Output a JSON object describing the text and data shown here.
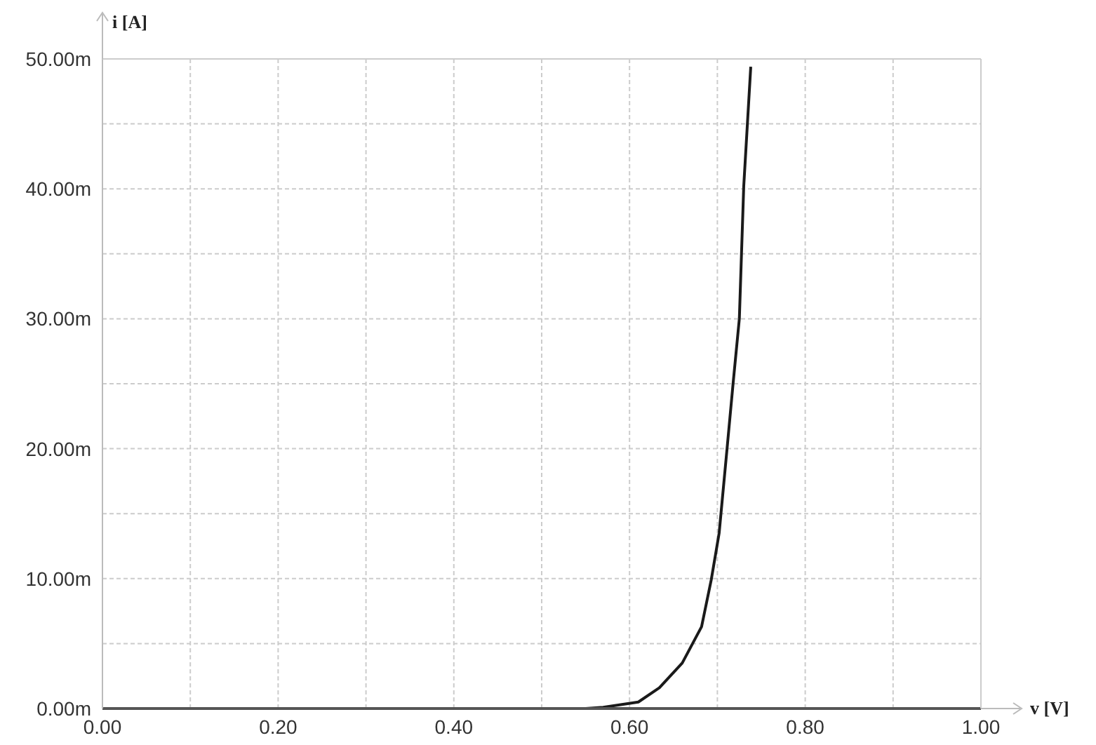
{
  "chart_data": {
    "type": "line",
    "xlabel": "v [V]",
    "ylabel": "i [A]",
    "x": [
      0,
      0.1,
      0.2,
      0.3,
      0.4,
      0.5,
      0.55,
      0.57,
      0.59,
      0.61,
      0.634,
      0.66,
      0.682,
      0.693,
      0.702,
      0.711,
      0.718,
      0.725,
      0.73,
      0.738
    ],
    "series": [
      {
        "color": "#1a1a1a",
        "values": [
          0,
          0,
          0,
          0,
          0,
          0,
          0,
          0.1,
          0.3,
          0.5,
          1.6,
          3.5,
          6.3,
          9.9,
          13.5,
          20,
          25.1,
          30,
          40.2,
          49.4
        ]
      }
    ],
    "xlim": [
      0,
      1
    ],
    "xticks": [
      {
        "value": 0,
        "label": "0.00"
      },
      {
        "value": 0.1,
        "label": null
      },
      {
        "value": 0.2,
        "label": "0.20"
      },
      {
        "value": 0.3,
        "label": null
      },
      {
        "value": 0.4,
        "label": "0.40"
      },
      {
        "value": 0.5,
        "label": null
      },
      {
        "value": 0.6,
        "label": "0.60"
      },
      {
        "value": 0.7,
        "label": null
      },
      {
        "value": 0.8,
        "label": "0.80"
      },
      {
        "value": 0.9,
        "label": null
      },
      {
        "value": 1,
        "label": "1.00"
      }
    ],
    "ylim": [
      0,
      50
    ],
    "yticks": [
      {
        "value": 0,
        "label": "0.00m"
      },
      {
        "value": 5,
        "label": null
      },
      {
        "value": 10,
        "label": "10.00m"
      },
      {
        "value": 15,
        "label": null
      },
      {
        "value": 20,
        "label": "20.00m"
      },
      {
        "value": 25,
        "label": null
      },
      {
        "value": 30,
        "label": "30.00m"
      },
      {
        "value": 35,
        "label": null
      },
      {
        "value": 40,
        "label": "40.00m"
      },
      {
        "value": 45,
        "label": null
      },
      {
        "value": 50,
        "label": "50.00m"
      }
    ],
    "grid": true,
    "marker": "none",
    "line_style": "solid",
    "legend": false
  }
}
